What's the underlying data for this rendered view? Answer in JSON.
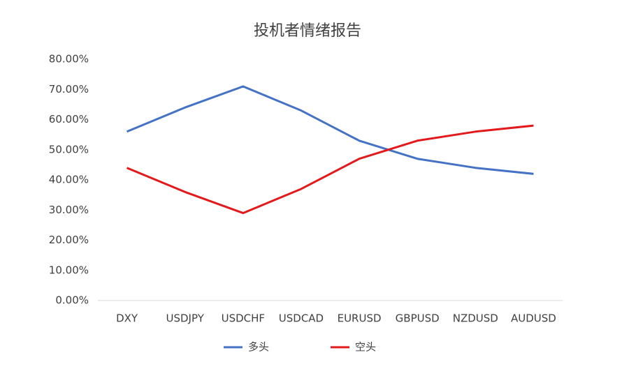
{
  "chart_data": {
    "type": "line",
    "title": "投机者情绪报告",
    "categories": [
      "DXY",
      "USDJPY",
      "USDCHF",
      "USDCAD",
      "EURUSD",
      "GBPUSD",
      "NZDUSD",
      "AUDUSD"
    ],
    "series": [
      {
        "name": "多头",
        "color": "#4472c4",
        "values": [
          56,
          64,
          71,
          63,
          53,
          47,
          44,
          42
        ]
      },
      {
        "name": "空头",
        "color": "#e31a1c",
        "values": [
          44,
          36,
          29,
          37,
          47,
          53,
          56,
          58
        ]
      }
    ],
    "ylim": [
      0,
      80
    ],
    "yticks": [
      {
        "value": 0,
        "label": "0.00%"
      },
      {
        "value": 10,
        "label": "10.00%"
      },
      {
        "value": 20,
        "label": "20.00%"
      },
      {
        "value": 30,
        "label": "30.00%"
      },
      {
        "value": 40,
        "label": "40.00%"
      },
      {
        "value": 50,
        "label": "50.00%"
      },
      {
        "value": 60,
        "label": "60.00%"
      },
      {
        "value": 70,
        "label": "70.00%"
      },
      {
        "value": 80,
        "label": "80.00%"
      }
    ],
    "grid": false,
    "legend": "bottom"
  }
}
